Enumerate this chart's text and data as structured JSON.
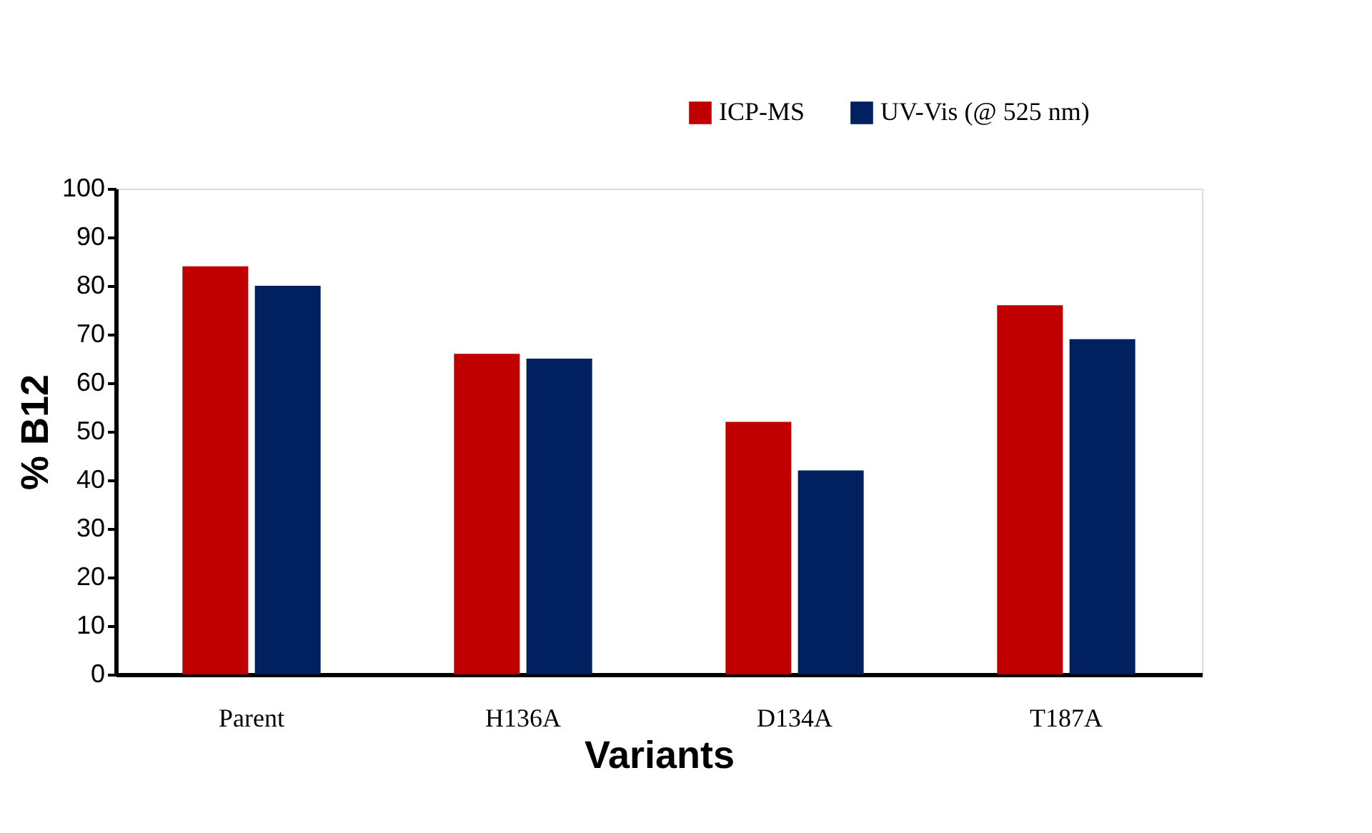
{
  "chart_data": {
    "type": "bar",
    "xlabel": "Variants",
    "ylabel": "% B12",
    "categories": [
      "Parent",
      "H136A",
      "D134A",
      "T187A"
    ],
    "series": [
      {
        "name": "ICP-MS",
        "color": "#c00000",
        "values": [
          84,
          66,
          52,
          76
        ]
      },
      {
        "name": "UV-Vis (@ 525 nm)",
        "color": "#002060",
        "values": [
          80,
          65,
          42,
          69
        ]
      }
    ],
    "ylim": [
      0,
      100
    ],
    "yticks": [
      0,
      10,
      20,
      30,
      40,
      50,
      60,
      70,
      80,
      90,
      100
    ],
    "grid": false,
    "legend": "top right"
  }
}
